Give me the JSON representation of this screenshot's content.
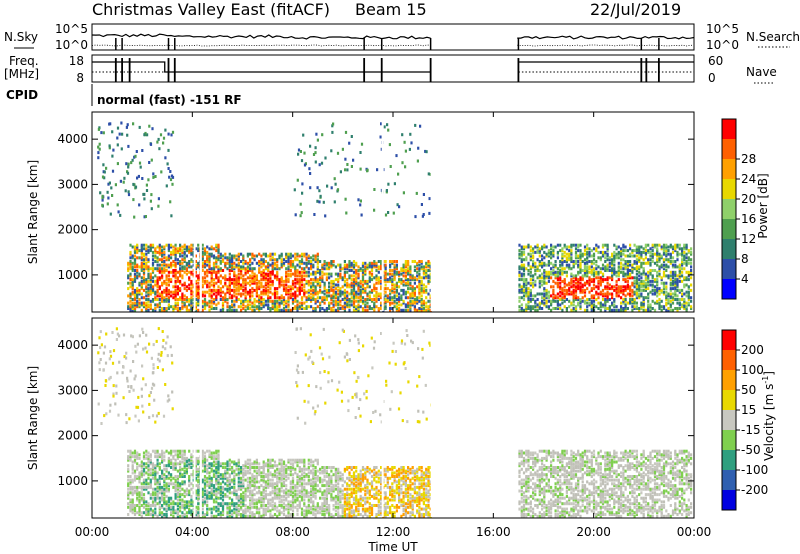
{
  "header": {
    "station": "Christmas Valley East (fitACF)",
    "beam": "Beam 15",
    "date": "22/Jul/2019"
  },
  "top_panels": {
    "nsky_label": "N.Sky",
    "nsearch_label": "N.Search",
    "noise_ticks_left": [
      "10^5",
      "10^0"
    ],
    "noise_ticks_right": [
      "10^5",
      "10^0"
    ],
    "freq_label_line1": "Freq.",
    "freq_label_line2": "[MHz]",
    "freq_ticks": [
      "18",
      "8"
    ],
    "nave_label": "Nave",
    "nave_ticks": [
      "60",
      "0"
    ],
    "cpid_label": "CPID",
    "cpid_text": "normal (fast) -151 RF"
  },
  "chart_data": [
    {
      "type": "heatmap",
      "name": "power",
      "ylabel": "Slant Range [km]",
      "yticks": [
        "1000",
        "2000",
        "3000",
        "4000"
      ],
      "ylim": [
        180,
        4600
      ],
      "xlim_hours": [
        0,
        24
      ],
      "colorbar": {
        "label": "Power [dB]",
        "ticks": [
          "4",
          "8",
          "12",
          "16",
          "20",
          "24",
          "28"
        ],
        "colors": [
          "#0000ff",
          "#2d4fa8",
          "#2f7f6d",
          "#4f9f4f",
          "#8fd06a",
          "#e8d800",
          "#ffa000",
          "#ff6000",
          "#ff0000"
        ]
      },
      "data_gap_hours": [
        13.55,
        16.95
      ]
    },
    {
      "type": "heatmap",
      "name": "velocity",
      "ylabel": "Slant Range [km]",
      "yticks": [
        "1000",
        "2000",
        "3000",
        "4000"
      ],
      "ylim": [
        180,
        4600
      ],
      "xlim_hours": [
        0,
        24
      ],
      "xlabel": "Time UT",
      "xticks": [
        "00:00",
        "04:00",
        "08:00",
        "12:00",
        "16:00",
        "20:00",
        "00:00"
      ],
      "colorbar": {
        "label_main": "Velocity [m s",
        "label_sup": "-1",
        "label_end": "]",
        "ticks": [
          "200",
          "100",
          "50",
          "15",
          "-15",
          "-50",
          "-100",
          "-200"
        ],
        "colors": [
          "#0000e0",
          "#2f5fb0",
          "#2f9f7f",
          "#7fcf4f",
          "#c8c8c0",
          "#e8d800",
          "#ffa000",
          "#ff6000",
          "#ff0000"
        ]
      },
      "ground_scatter_color": "#c0c0b8"
    }
  ]
}
